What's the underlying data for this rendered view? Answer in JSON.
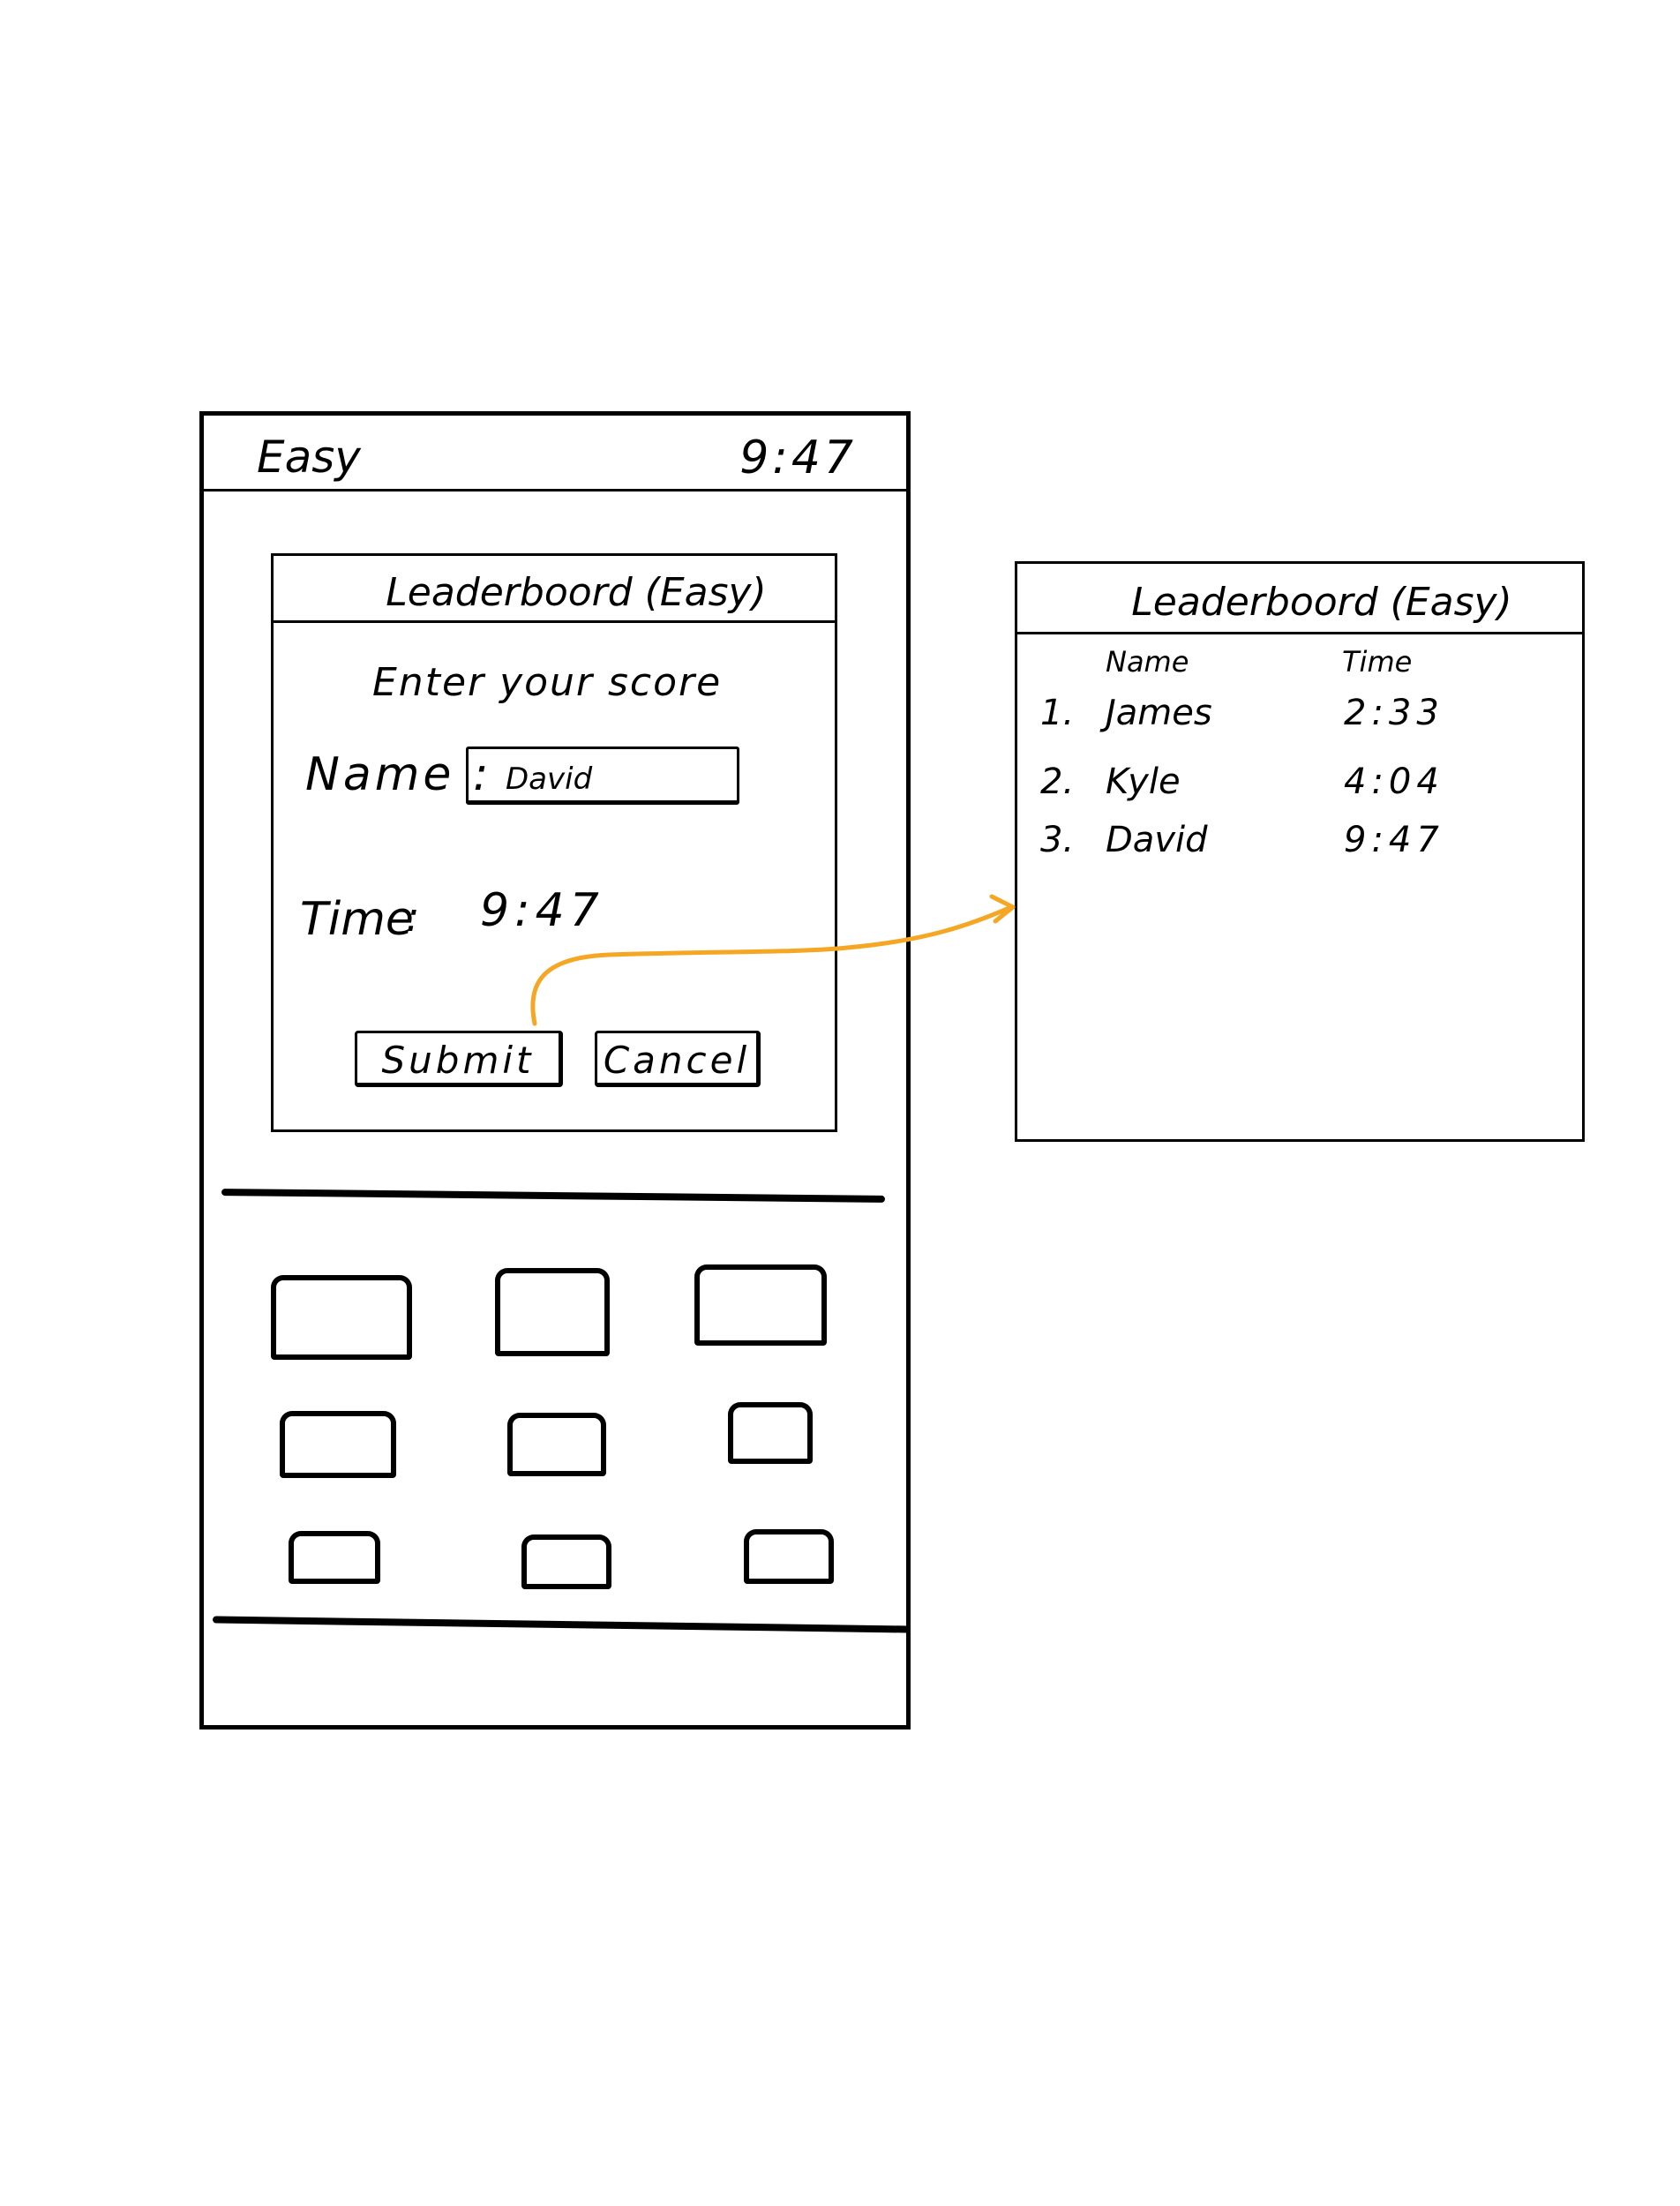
{
  "phone": {
    "difficulty": "Easy",
    "clock": "9:47"
  },
  "dialog": {
    "title": "Leaderboord (Easy)",
    "prompt": "Enter your score",
    "name_label": "Name :",
    "name_value": "David",
    "time_label": "Time",
    "time_colon": ":",
    "time_value": "9:47",
    "submit_label": "Submit",
    "cancel_label": "Cancel"
  },
  "board": {
    "title": "Leaderboord (Easy)",
    "col_name": "Name",
    "col_time": "Time",
    "rows": [
      {
        "rank": "1.",
        "name": "James",
        "time": "2:33"
      },
      {
        "rank": "2.",
        "name": "Kyle",
        "time": "4:04"
      },
      {
        "rank": "3.",
        "name": "David",
        "time": "9:47"
      }
    ]
  },
  "colors": {
    "ink": "#000000",
    "arrow": "#f5a623"
  }
}
